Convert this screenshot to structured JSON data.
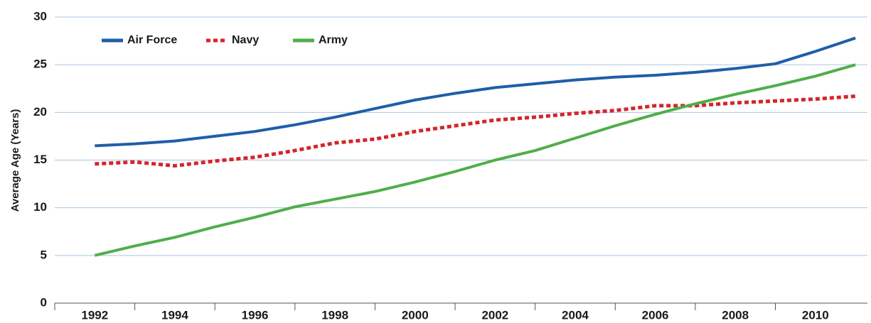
{
  "chart_data": {
    "type": "line",
    "ylabel": "Average Age (Years)",
    "x": [
      1992,
      1993,
      1994,
      1995,
      1996,
      1997,
      1998,
      1999,
      2000,
      2001,
      2002,
      2003,
      2004,
      2005,
      2006,
      2007,
      2008,
      2009,
      2010,
      2011
    ],
    "series": [
      {
        "name": "Air Force",
        "color": "#1f5ea8",
        "style": "solid",
        "values": [
          16.5,
          16.7,
          17.0,
          17.5,
          18.0,
          18.7,
          19.5,
          20.4,
          21.3,
          22.0,
          22.6,
          23.0,
          23.4,
          23.7,
          23.9,
          24.2,
          24.6,
          25.1,
          26.4,
          27.8
        ]
      },
      {
        "name": "Navy",
        "color": "#d3262b",
        "style": "dashed",
        "values": [
          14.6,
          14.8,
          14.4,
          14.9,
          15.3,
          16.0,
          16.8,
          17.2,
          18.0,
          18.6,
          19.2,
          19.5,
          19.9,
          20.2,
          20.7,
          20.7,
          21.0,
          21.2,
          21.4,
          21.7
        ]
      },
      {
        "name": "Army",
        "color": "#4fae4a",
        "style": "solid",
        "values": [
          5.0,
          6.0,
          6.9,
          8.0,
          9.0,
          10.1,
          10.9,
          11.7,
          12.7,
          13.8,
          15.0,
          16.0,
          17.3,
          18.6,
          19.8,
          20.9,
          21.9,
          22.8,
          23.8,
          25.0
        ]
      }
    ],
    "xlim": [
      1991,
      2011.3
    ],
    "xticks": [
      1992,
      1994,
      1996,
      1998,
      2000,
      2002,
      2004,
      2006,
      2008,
      2010
    ],
    "xminorticks": [
      1993,
      1995,
      1997,
      1999,
      2001,
      2003,
      2005,
      2007,
      2009
    ],
    "ylim": [
      0,
      30
    ],
    "yticks": [
      0,
      5,
      10,
      15,
      20,
      25,
      30
    ],
    "grid": true,
    "legend": "top-left"
  }
}
